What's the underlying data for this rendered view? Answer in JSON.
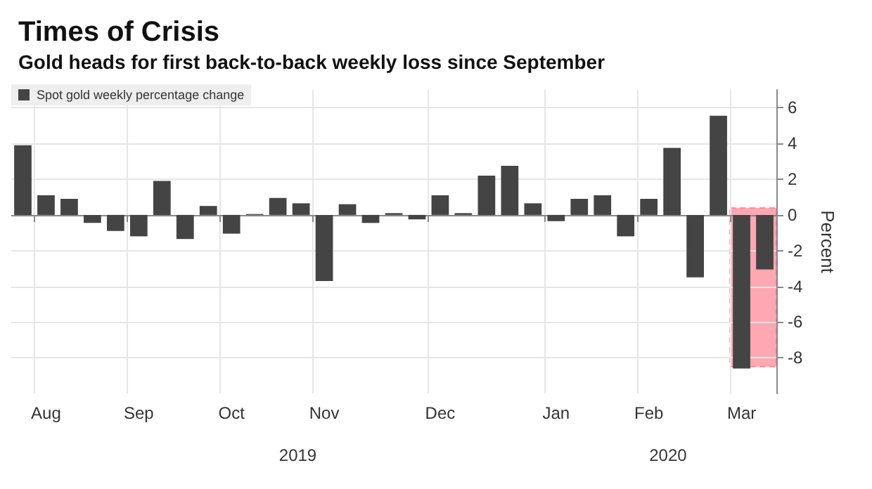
{
  "chart_data": {
    "type": "bar",
    "title": "Times of Crisis",
    "subtitle": "Gold heads for first back-to-back weekly loss since September",
    "ylabel": "Percent",
    "categories": [
      null,
      "Aug",
      null,
      null,
      null,
      "Sep",
      null,
      null,
      null,
      "Oct",
      null,
      null,
      null,
      "Nov",
      null,
      null,
      null,
      null,
      "Dec",
      null,
      null,
      null,
      null,
      "Jan",
      null,
      null,
      null,
      "Feb",
      null,
      null,
      null,
      "Mar",
      null
    ],
    "series": [
      {
        "name": "Spot gold weekly percentage change",
        "color": "#444444",
        "values": [
          3.9,
          1.1,
          0.9,
          -0.45,
          -0.9,
          -1.2,
          1.9,
          -1.35,
          0.5,
          -1.05,
          0.05,
          0.95,
          0.65,
          -3.7,
          0.6,
          -0.45,
          0.1,
          -0.25,
          1.1,
          0.1,
          2.2,
          2.75,
          0.65,
          -0.35,
          0.9,
          1.1,
          -1.2,
          0.9,
          3.75,
          -3.5,
          5.55,
          -8.6,
          -3.05
        ]
      }
    ],
    "ylim": [
      -10,
      7
    ],
    "yticks": [
      -8,
      -6,
      -4,
      -2,
      0,
      2,
      4,
      6
    ],
    "bands": [
      {
        "axis": "y",
        "from": -8.5,
        "to": 0.4,
        "color": "#ff5068"
      }
    ],
    "annotations": [
      "2019",
      "2020"
    ],
    "grid": true,
    "legend": "top left"
  }
}
